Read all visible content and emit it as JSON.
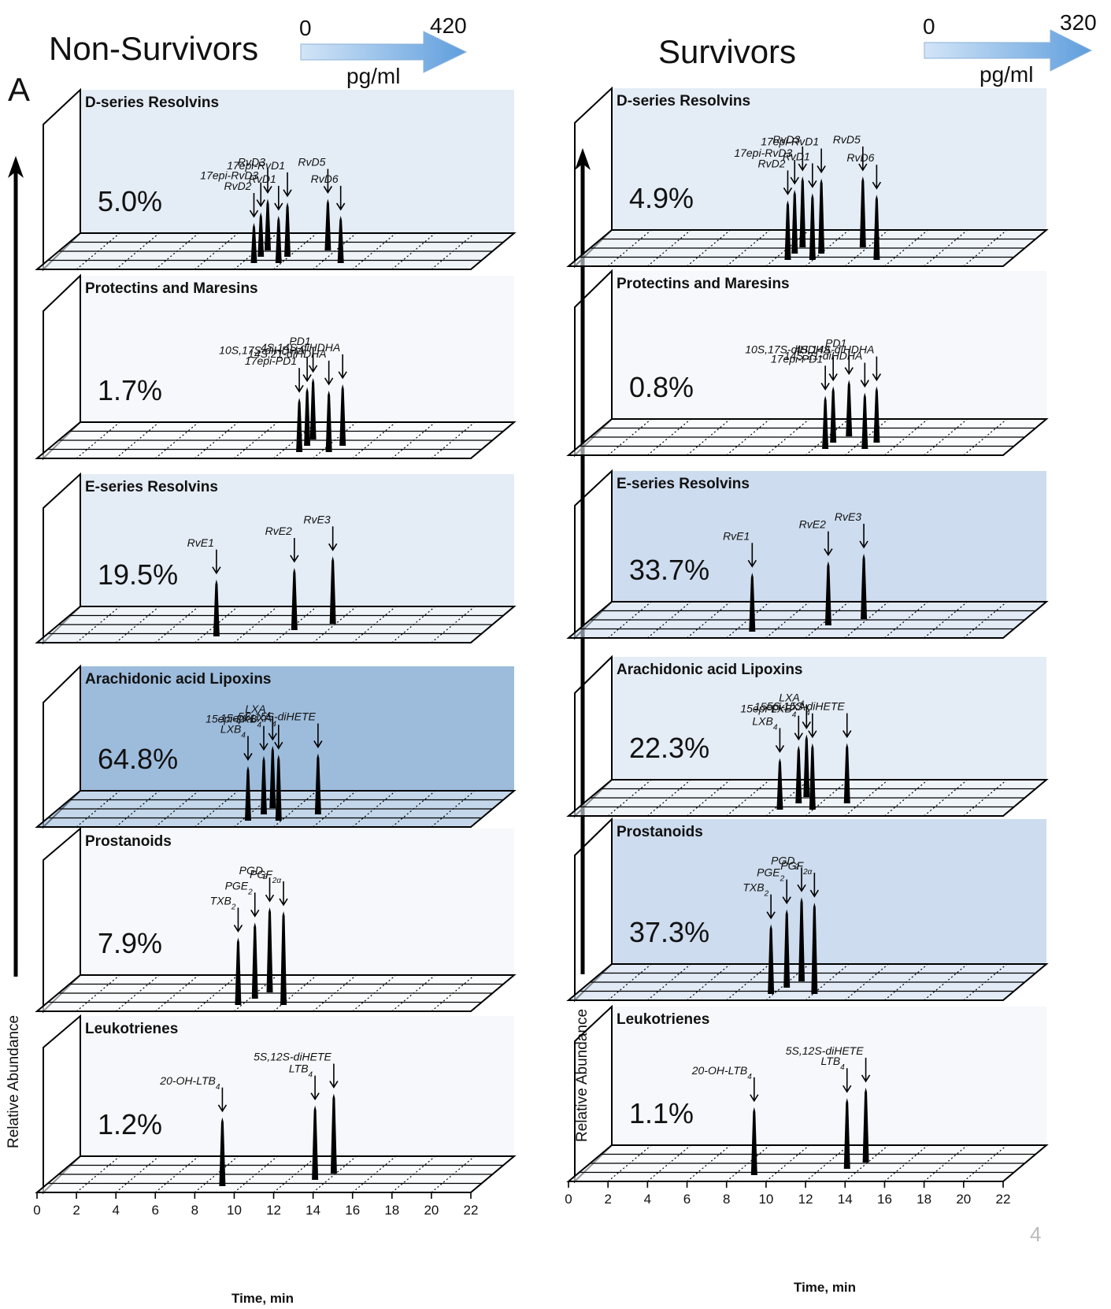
{
  "colors": {
    "arrow_fill": "#7fb2e5",
    "bg_lightest": "#f6f8fb",
    "bg_light": "#e4ecf5",
    "bg_medium": "#cddcee",
    "bg_dark": "#9dbcdc",
    "peak": "#000000",
    "page_number": "#bbbbbb"
  },
  "figure": {
    "panel_letter": "A",
    "y_axis_label": "Relative Abundance",
    "x_axis_title": "Time, min",
    "x_ticks": [
      "0",
      "2",
      "4",
      "6",
      "8",
      "10",
      "12",
      "14",
      "16",
      "18",
      "20",
      "22"
    ],
    "page_number": "4"
  },
  "chart_data": [
    {
      "type": "line",
      "chart_kind": "stacked 3D chromatograms with concentration heat scale",
      "title": "Non-Survivors",
      "scale": {
        "min_label": "0",
        "max_label": "420",
        "min": 0,
        "max": 420,
        "unit": "pg/ml"
      },
      "xlabel": "Time, min",
      "ylabel": "Relative Abundance",
      "xlim": [
        0,
        22
      ],
      "panels": [
        {
          "name": "D-series Resolvins",
          "percent": "5.0%",
          "bg": "bg_light",
          "peaks": [
            {
              "label": "RvD2",
              "time": 10.6,
              "height": 0.28
            },
            {
              "label": "17epi-RvD3",
              "time": 10.95,
              "height": 0.31
            },
            {
              "label": "RvD3",
              "time": 11.3,
              "height": 0.36
            },
            {
              "label": "RvD1",
              "time": 11.85,
              "height": 0.33
            },
            {
              "label": "17epi-RvD1",
              "time": 12.3,
              "height": 0.38
            },
            {
              "label": "RvD5",
              "time": 14.35,
              "height": 0.36
            },
            {
              "label": "RvD6",
              "time": 15.0,
              "height": 0.33
            }
          ]
        },
        {
          "name": "Protectins and Maresins",
          "percent": "1.7%",
          "bg": "bg_lightest",
          "peaks": [
            {
              "label": "17epi-PD1",
              "time": 12.9,
              "height": 0.37
            },
            {
              "label": "10S,17S-diHDHA",
              "time": 13.3,
              "height": 0.4
            },
            {
              "label": "PD1",
              "time": 13.6,
              "height": 0.42
            },
            {
              "label": "14S,21-diHDHA",
              "time": 14.4,
              "height": 0.42
            },
            {
              "label": "4S,14S-diHDHA",
              "time": 15.1,
              "height": 0.42
            }
          ]
        },
        {
          "name": "E-series Resolvins",
          "percent": "19.5%",
          "bg": "bg_light",
          "peaks": [
            {
              "label": "RvE1",
              "time": 8.7,
              "height": 0.43
            },
            {
              "label": "RvE2",
              "time": 12.65,
              "height": 0.47
            },
            {
              "label": "RvE3",
              "time": 14.6,
              "height": 0.51
            }
          ]
        },
        {
          "name": "Arachidonic acid Lipoxins",
          "percent": "64.8%",
          "bg": "bg_dark",
          "peaks": [
            {
              "label": "LXB",
              "time": 10.3,
              "height": 0.44,
              "sub": "4"
            },
            {
              "label": "15epi-LXB",
              "time": 11.1,
              "height": 0.47,
              "sub": "4"
            },
            {
              "label": "LXA",
              "time": 11.55,
              "height": 0.5,
              "sub": "4"
            },
            {
              "label": "15epi-LXA",
              "time": 11.85,
              "height": 0.53,
              "sub": "4"
            },
            {
              "label": "5S,15S-diHETE",
              "time": 13.85,
              "height": 0.49
            }
          ]
        },
        {
          "name": "Prostanoids",
          "percent": "7.9%",
          "bg": "bg_lightest",
          "peaks": [
            {
              "label": "TXB",
              "time": 9.8,
              "height": 0.46,
              "sub": "2"
            },
            {
              "label": "PGE",
              "time": 10.65,
              "height": 0.52,
              "sub": "2"
            },
            {
              "label": "PGD",
              "time": 11.4,
              "height": 0.58,
              "sub": "2"
            },
            {
              "label": "PGF",
              "time": 12.1,
              "height": 0.64,
              "sub": "2α"
            }
          ]
        },
        {
          "name": "Leukotrienes",
          "percent": "1.2%",
          "bg": "bg_lightest",
          "peaks": [
            {
              "label": "20-OH-LTB",
              "time": 9.0,
              "height": 0.49,
              "sub": "4"
            },
            {
              "label": "LTB",
              "time": 13.7,
              "height": 0.53,
              "sub": "4"
            },
            {
              "label": "5S,12S-diHETE",
              "time": 14.65,
              "height": 0.57
            }
          ]
        }
      ]
    },
    {
      "type": "line",
      "chart_kind": "stacked 3D chromatograms with concentration heat scale",
      "title": "Survivors",
      "scale": {
        "min_label": "0",
        "max_label": "320",
        "min": 0,
        "max": 320,
        "unit": "pg/ml"
      },
      "xlabel": "Time, min",
      "ylabel": "Relative Abundance",
      "xlim": [
        0,
        22
      ],
      "panels": [
        {
          "name": "D-series Resolvins",
          "percent": "4.9%",
          "bg": "bg_light",
          "peaks": [
            {
              "label": "RvD2",
              "time": 10.7,
              "height": 0.42
            },
            {
              "label": "17epi-RvD3",
              "time": 11.05,
              "height": 0.45
            },
            {
              "label": "RvD3",
              "time": 11.45,
              "height": 0.5
            },
            {
              "label": "RvD1",
              "time": 11.95,
              "height": 0.47
            },
            {
              "label": "17epi-RvD1",
              "time": 12.4,
              "height": 0.53
            },
            {
              "label": "RvD5",
              "time": 14.5,
              "height": 0.5
            },
            {
              "label": "RvD6",
              "time": 15.2,
              "height": 0.46
            }
          ]
        },
        {
          "name": "Protectins and Maresins",
          "percent": "0.8%",
          "bg": "bg_lightest",
          "peaks": [
            {
              "label": "17epi-PD1",
              "time": 12.6,
              "height": 0.36
            },
            {
              "label": "10S,17S-diHDHA",
              "time": 13.0,
              "height": 0.38
            },
            {
              "label": "PD1",
              "time": 13.8,
              "height": 0.38
            },
            {
              "label": "14S,21-diHDHA",
              "time": 14.6,
              "height": 0.38
            },
            {
              "label": "4S,14S-diHDHA",
              "time": 15.2,
              "height": 0.38
            }
          ]
        },
        {
          "name": "E-series Resolvins",
          "percent": "33.7%",
          "bg": "bg_medium",
          "peaks": [
            {
              "label": "RvE1",
              "time": 8.9,
              "height": 0.45
            },
            {
              "label": "RvE2",
              "time": 12.75,
              "height": 0.49
            },
            {
              "label": "RvE3",
              "time": 14.55,
              "height": 0.5
            }
          ]
        },
        {
          "name": "Arachidonic acid Lipoxins",
          "percent": "22.3%",
          "bg": "bg_light",
          "peaks": [
            {
              "label": "LXB",
              "time": 10.3,
              "height": 0.42,
              "sub": "4"
            },
            {
              "label": "15epi-LXB",
              "time": 11.25,
              "height": 0.47,
              "sub": "4"
            },
            {
              "label": "LXA",
              "time": 11.65,
              "height": 0.51,
              "sub": "4"
            },
            {
              "label": "15epi-LXA",
              "time": 11.95,
              "height": 0.54,
              "sub": "4"
            },
            {
              "label": "5S,15S-diHETE",
              "time": 13.7,
              "height": 0.49
            }
          ]
        },
        {
          "name": "Prostanoids",
          "percent": "37.3%",
          "bg": "bg_medium",
          "peaks": [
            {
              "label": "TXB",
              "time": 9.85,
              "height": 0.48,
              "sub": "2"
            },
            {
              "label": "PGE",
              "time": 10.65,
              "height": 0.54,
              "sub": "2"
            },
            {
              "label": "PGD",
              "time": 11.4,
              "height": 0.58,
              "sub": "2"
            },
            {
              "label": "PGF",
              "time": 12.05,
              "height": 0.63,
              "sub": "2α"
            }
          ]
        },
        {
          "name": "Leukotrienes",
          "percent": "1.1%",
          "bg": "bg_lightest",
          "peaks": [
            {
              "label": "20-OH-LTB",
              "time": 9.0,
              "height": 0.49,
              "sub": "4"
            },
            {
              "label": "LTB",
              "time": 13.7,
              "height": 0.51,
              "sub": "4"
            },
            {
              "label": "5S,12S-diHETE",
              "time": 14.65,
              "height": 0.54
            }
          ]
        }
      ]
    }
  ]
}
